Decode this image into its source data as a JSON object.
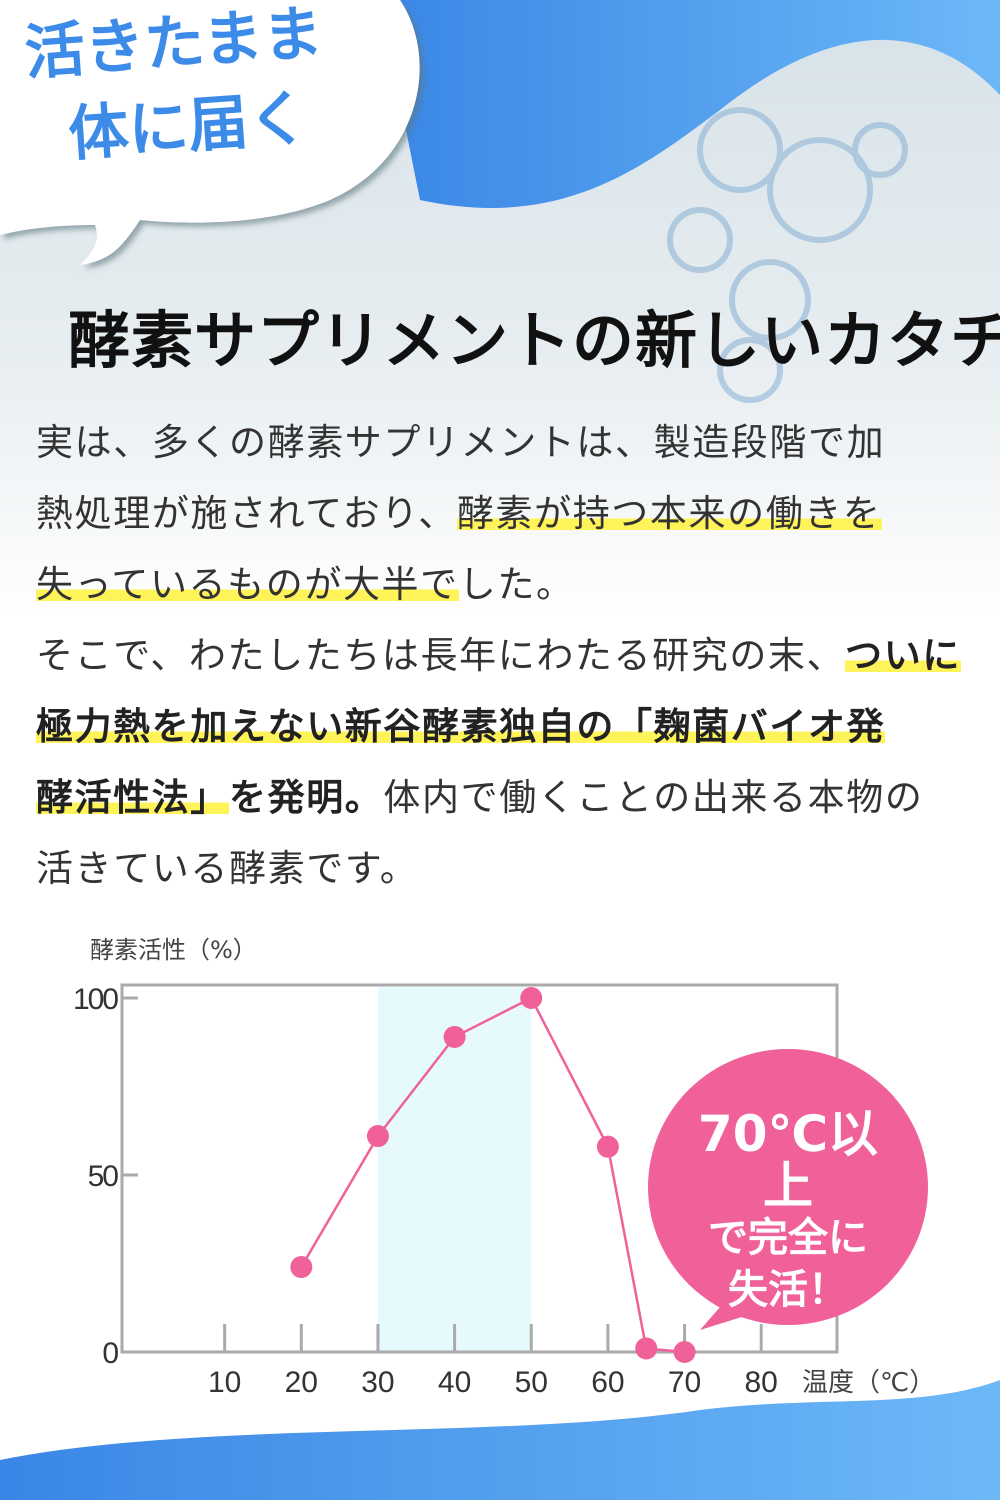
{
  "bubble": {
    "lines": [
      "活きたまま",
      "体に届く"
    ]
  },
  "headline": "酵素サプリメントの新しいカタチ",
  "body": {
    "lines": [
      [
        {
          "t": "実は、多くの酵素サプリメントは、製造段階で加"
        }
      ],
      [
        {
          "t": "熱処理が施されており、"
        },
        {
          "t": "酵素が持つ本来の働きを",
          "hl": true
        }
      ],
      [
        {
          "t": "失っているものが大半で",
          "hl": true
        },
        {
          "t": "した。"
        }
      ],
      [
        {
          "t": "そこで、わたしたちは長年にわたる研究の末、"
        },
        {
          "t": "ついに",
          "hl": true,
          "b": true
        }
      ],
      [
        {
          "t": "極力熱を加えない新谷酵素独自の「麹菌バイオ発",
          "hl": true,
          "b": true
        }
      ],
      [
        {
          "t": "酵活性法」",
          "hl": true,
          "b": true
        },
        {
          "t": "を発明。",
          "b": true
        },
        {
          "t": "体内で働くことの出来る本物の"
        }
      ],
      [
        {
          "t": "活きている酵素です。"
        }
      ]
    ]
  },
  "colors": {
    "accent": "#3d8be8",
    "line": "#f0619a",
    "highlight": "#fff35a",
    "band": "#e6fafd"
  },
  "chart_data": {
    "type": "line",
    "ylabel": "酵素活性（%）",
    "xlabel": "温度（℃）",
    "x": [
      20,
      30,
      40,
      50,
      60,
      65,
      70
    ],
    "values": [
      24,
      61,
      89,
      100,
      58,
      1,
      0
    ],
    "xticks": [
      "10",
      "20",
      "30",
      "40",
      "50",
      "60",
      "70",
      "80"
    ],
    "yticks": [
      "0",
      "50",
      "100"
    ],
    "xlim": [
      0,
      90
    ],
    "ylim": [
      0,
      100
    ],
    "highlight_band": [
      30,
      50
    ],
    "grid": false,
    "annotation": {
      "lines": [
        "70℃以上",
        "で完全に",
        "失活！"
      ]
    }
  }
}
